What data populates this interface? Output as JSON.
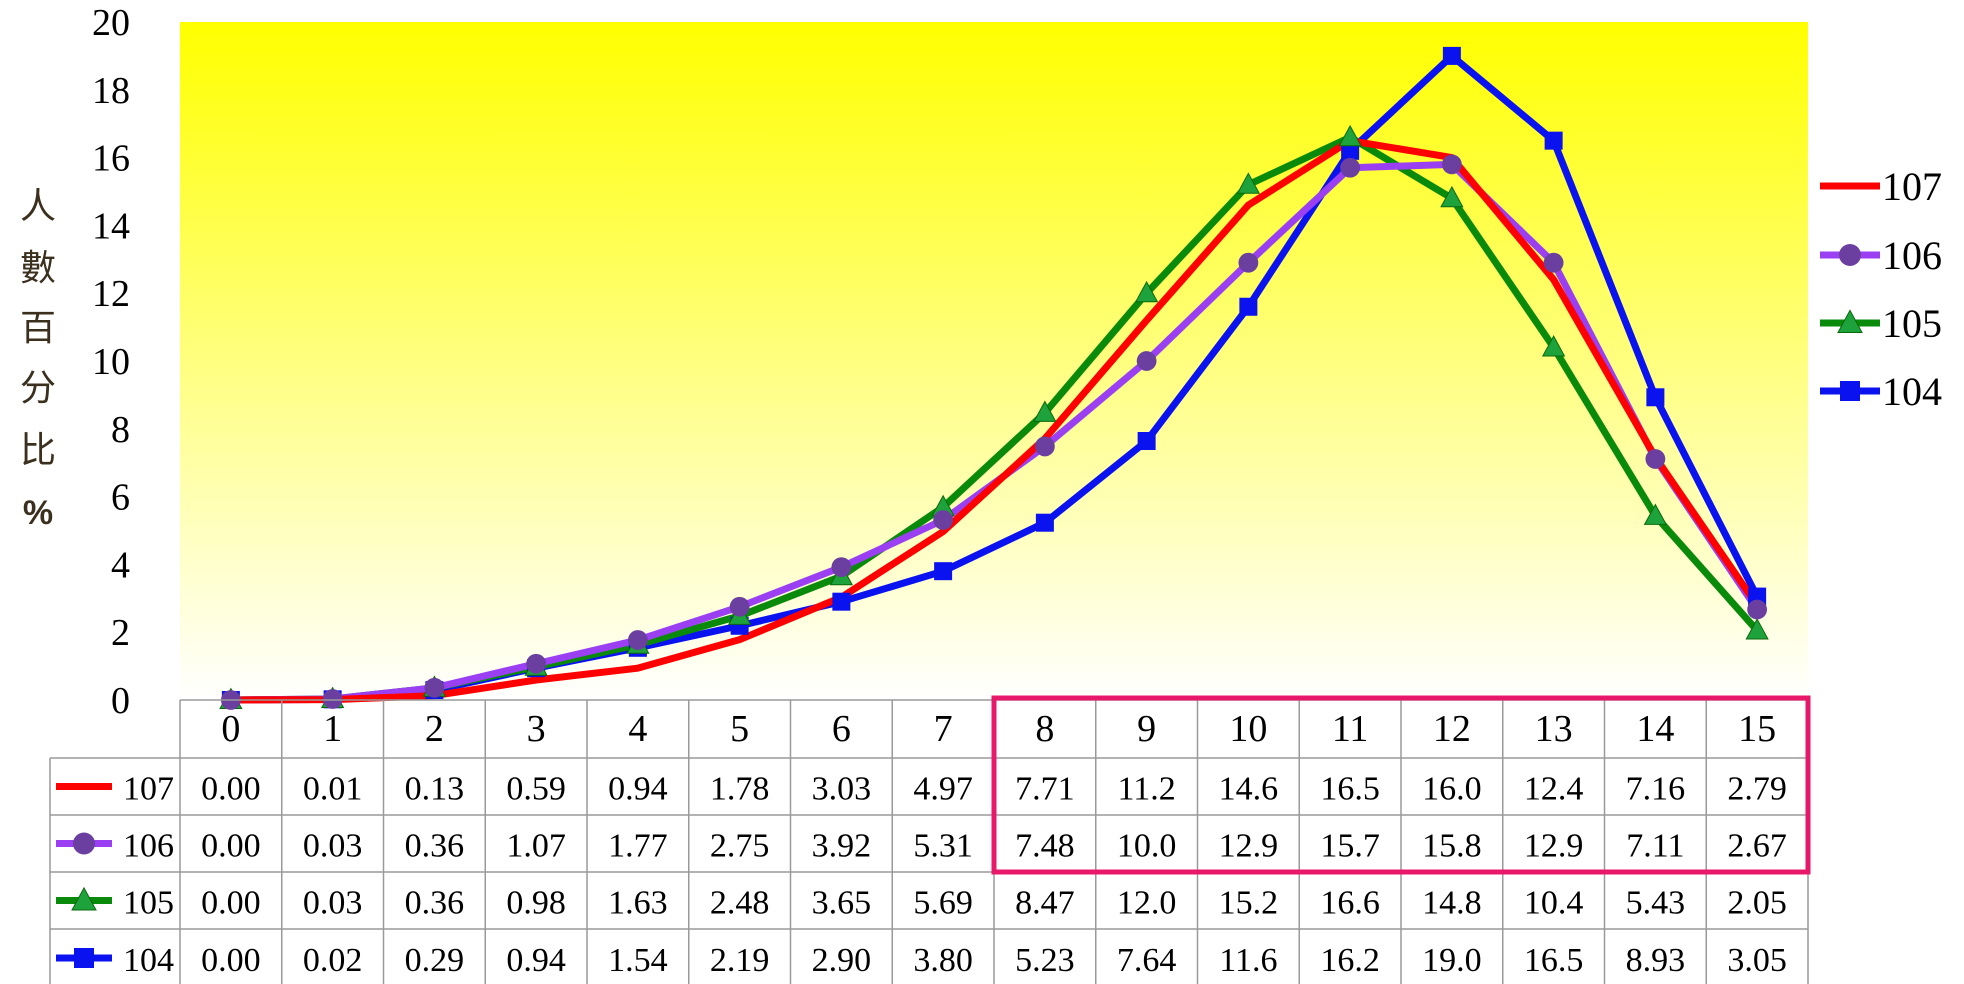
{
  "chart_data": {
    "type": "line",
    "ylabel": "人數百分比%",
    "ylabel_chars": [
      "人",
      "數",
      "百",
      "分",
      "比",
      "%"
    ],
    "ylim": [
      0,
      20
    ],
    "yticks": [
      "0",
      "2",
      "4",
      "6",
      "8",
      "10",
      "12",
      "14",
      "16",
      "18",
      "20"
    ],
    "categories": [
      "0",
      "1",
      "2",
      "3",
      "4",
      "5",
      "6",
      "7",
      "8",
      "9",
      "10",
      "11",
      "12",
      "13",
      "14",
      "15"
    ],
    "legend_position": "right",
    "background": "yellow-to-white vertical gradient",
    "grid": false,
    "highlight_box": {
      "color": "#e8196a",
      "from_category": "8",
      "to_category": "15",
      "rows": [
        "107",
        "106"
      ]
    },
    "series": [
      {
        "name": "107",
        "color": "#ff0000",
        "marker": "none",
        "values": [
          0.0,
          0.01,
          0.13,
          0.59,
          0.94,
          1.78,
          3.03,
          4.97,
          7.71,
          11.2,
          14.6,
          16.5,
          16.0,
          12.4,
          7.16,
          2.79
        ],
        "labels": [
          "0.00",
          "0.01",
          "0.13",
          "0.59",
          "0.94",
          "1.78",
          "3.03",
          "4.97",
          "7.71",
          "11.2",
          "14.6",
          "16.5",
          "16.0",
          "12.4",
          "7.16",
          "2.79"
        ]
      },
      {
        "name": "106",
        "color": "#9b3ff2",
        "marker": "circle",
        "marker_color": "#6b3fa0",
        "values": [
          0.0,
          0.03,
          0.36,
          1.07,
          1.77,
          2.75,
          3.92,
          5.31,
          7.48,
          10.0,
          12.9,
          15.7,
          15.8,
          12.9,
          7.11,
          2.67
        ],
        "labels": [
          "0.00",
          "0.03",
          "0.36",
          "1.07",
          "1.77",
          "2.75",
          "3.92",
          "5.31",
          "7.48",
          "10.0",
          "12.9",
          "15.7",
          "15.8",
          "12.9",
          "7.11",
          "2.67"
        ]
      },
      {
        "name": "105",
        "color": "#0a8a0a",
        "marker": "triangle",
        "marker_color": "#1ea23c",
        "values": [
          0.0,
          0.03,
          0.36,
          0.98,
          1.63,
          2.48,
          3.65,
          5.69,
          8.47,
          12.0,
          15.2,
          16.6,
          14.8,
          10.4,
          5.43,
          2.05
        ],
        "labels": [
          "0.00",
          "0.03",
          "0.36",
          "0.98",
          "1.63",
          "2.48",
          "3.65",
          "5.69",
          "8.47",
          "12.0",
          "15.2",
          "16.6",
          "14.8",
          "10.4",
          "5.43",
          "2.05"
        ]
      },
      {
        "name": "104",
        "color": "#0a12f0",
        "marker": "square",
        "marker_color": "#0a12f0",
        "values": [
          0.0,
          0.02,
          0.29,
          0.94,
          1.54,
          2.19,
          2.9,
          3.8,
          5.23,
          7.64,
          11.6,
          16.2,
          19.0,
          16.5,
          8.93,
          3.05
        ],
        "labels": [
          "0.00",
          "0.02",
          "0.29",
          "0.94",
          "1.54",
          "2.19",
          "2.90",
          "3.80",
          "5.23",
          "7.64",
          "11.6",
          "16.2",
          "19.0",
          "16.5",
          "8.93",
          "3.05"
        ]
      }
    ]
  }
}
